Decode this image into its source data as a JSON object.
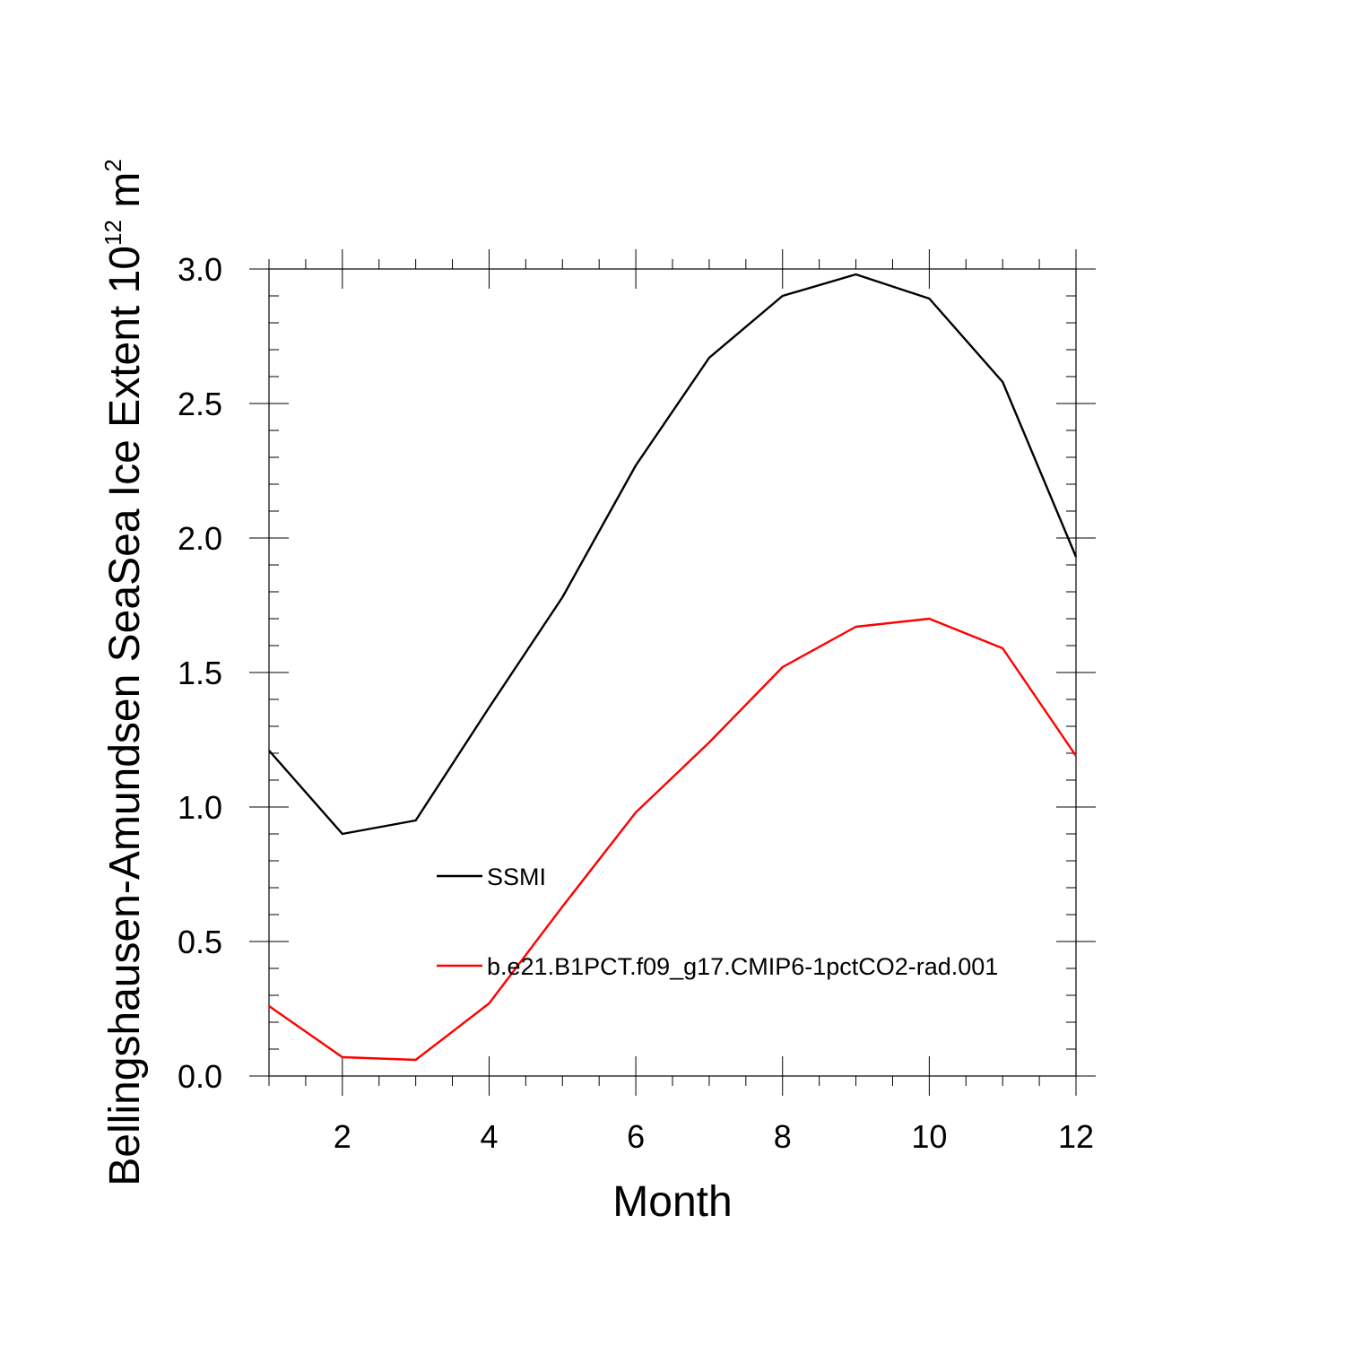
{
  "chart_data": {
    "type": "line",
    "xlabel": "Month",
    "ylabel": {
      "prefix": "Bellingshausen-Amundsen SeaSea Ice Extent 10",
      "exp1": "12",
      "mid": " m",
      "exp2": "2"
    },
    "xlim": [
      1,
      12
    ],
    "ylim": [
      0,
      3
    ],
    "x_ticks": [
      2,
      4,
      6,
      8,
      10,
      12
    ],
    "x_tick_labels": [
      "2",
      "4",
      "6",
      "8",
      "10",
      "12"
    ],
    "y_ticks": [
      0,
      0.5,
      1,
      1.5,
      2,
      2.5,
      3
    ],
    "y_tick_labels": [
      "0.0",
      "0.5",
      "1.0",
      "1.5",
      "2.0",
      "2.5",
      "3.0"
    ],
    "x": [
      1,
      2,
      3,
      4,
      5,
      6,
      7,
      8,
      9,
      10,
      11,
      12
    ],
    "series": [
      {
        "name": "SSMI",
        "color": "#000000",
        "values": [
          1.21,
          0.9,
          0.95,
          1.37,
          1.78,
          2.27,
          2.67,
          2.9,
          2.98,
          2.89,
          2.58,
          1.93
        ]
      },
      {
        "name": "b.e21.B1PCT.f09_g17.CMIP6-1pctCO2-rad.001",
        "color": "#ff0000",
        "values": [
          0.26,
          0.07,
          0.06,
          0.27,
          0.63,
          0.98,
          1.24,
          1.52,
          1.67,
          1.7,
          1.59,
          1.19
        ]
      }
    ],
    "legend": "inside, lower-middle"
  }
}
